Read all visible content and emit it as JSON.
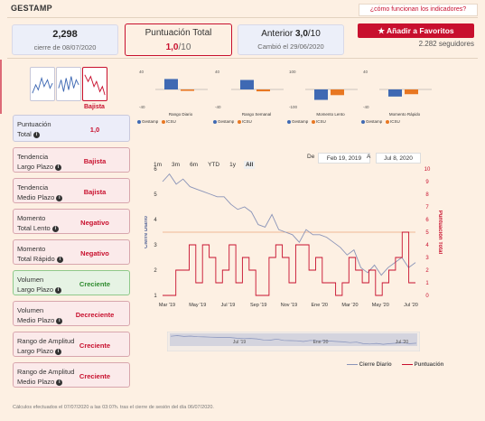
{
  "header": {
    "brand": "GESTAMP",
    "help_link": "¿cómo funcionan los indicadores?"
  },
  "summary": {
    "price": "2,298",
    "price_date": "cierre de 08/07/2020",
    "total_label": "Puntuación Total",
    "total_value": "1,0",
    "total_max": "/10",
    "prev_label": "Anterior",
    "prev_value": "3,0",
    "prev_max": "/10",
    "prev_changed": "Cambió el 29/06/2020"
  },
  "favorites": {
    "button_label": "Añadir a Favoritos",
    "followers": "2.282 seguidores"
  },
  "thumbnail_label": "Bajista",
  "mini_charts": [
    {
      "title": "Rango Diario",
      "top": "40",
      "bottom": "-40",
      "values": [
        22,
        -3
      ]
    },
    {
      "title": "Rango Semanal",
      "top": "40",
      "bottom": "-40",
      "values": [
        20,
        -4
      ]
    },
    {
      "title": "Momento Lento",
      "top": "100",
      "bottom": "-100",
      "values": [
        -55,
        -30
      ]
    },
    {
      "title": "Momento Rápido",
      "top": "40",
      "bottom": "-40",
      "values": [
        -15,
        -10
      ]
    }
  ],
  "mini_legend": {
    "a": "Gestamp",
    "b": "ICSU",
    "a_color": "#3f69b3",
    "b_color": "#e87722"
  },
  "indicators": [
    {
      "label1": "Puntuación",
      "label2": "Total",
      "value": "1,0",
      "style": "blue"
    },
    {
      "label1": "Tendencia",
      "label2": "Largo Plazo",
      "value": "Bajista",
      "style": "red"
    },
    {
      "label1": "Tendencia",
      "label2": "Medio Plazo",
      "value": "Bajista",
      "style": "red"
    },
    {
      "label1": "Momento",
      "label2": "Total Lento",
      "value": "Negativo",
      "style": "red"
    },
    {
      "label1": "Momento",
      "label2": "Total Rápido",
      "value": "Negativo",
      "style": "red"
    },
    {
      "label1": "Volumen",
      "label2": "Largo Plazo",
      "value": "Creciente",
      "style": "green"
    },
    {
      "label1": "Volumen",
      "label2": "Medio Plazo",
      "value": "Decreciente",
      "style": "red"
    },
    {
      "label1": "Rango de Amplitud",
      "label2": "Largo Plazo",
      "value": "Creciente",
      "style": "red"
    },
    {
      "label1": "Rango de Amplitud",
      "label2": "Medio Plazo",
      "value": "Creciente",
      "style": "red"
    }
  ],
  "range_buttons": [
    "1m",
    "3m",
    "6m",
    "YTD",
    "1y",
    "All"
  ],
  "date_range": {
    "from_label": "De",
    "from": "Feb 19, 2019",
    "to_label": "A",
    "to": "Jul 8, 2020"
  },
  "chart_data": {
    "type": "line",
    "x_ticks": [
      "Mar '19",
      "May '19",
      "Jul '19",
      "Sep '19",
      "Nov '19",
      "Ene '20",
      "Mar '20",
      "May '20",
      "Jul '20"
    ],
    "y_left_label": "Cierre Diario",
    "y_left_ticks": [
      "1",
      "2",
      "3",
      "4",
      "5",
      "6"
    ],
    "y_left_range": [
      1,
      6
    ],
    "y_right_label": "Puntuación Total",
    "y_right_ticks": [
      "0",
      "1",
      "2",
      "3",
      "4",
      "5",
      "6",
      "7",
      "8",
      "9",
      "10"
    ],
    "y_right_range": [
      0,
      10
    ],
    "reference_line": 5,
    "series": [
      {
        "name": "Cierre Diario",
        "color": "#8a94b8",
        "values": [
          5.5,
          5.8,
          5.4,
          5.6,
          5.3,
          5.2,
          5.1,
          5.0,
          4.9,
          4.9,
          4.6,
          4.4,
          4.5,
          4.3,
          3.8,
          3.7,
          4.2,
          3.6,
          3.5,
          3.4,
          3.1,
          3.6,
          3.4,
          3.4,
          3.3,
          3.1,
          2.9,
          2.6,
          2.8,
          2.1,
          1.9,
          2.2,
          1.8,
          2.1,
          2.3,
          2.5,
          2.1,
          2.3
        ]
      },
      {
        "name": "Puntuación",
        "color": "#c8102e",
        "values": [
          0,
          0,
          2,
          2,
          4,
          1,
          4,
          3,
          1,
          2,
          4,
          1,
          3,
          2,
          0,
          0,
          3,
          4,
          3,
          1,
          4,
          4,
          2,
          3,
          1,
          1,
          0,
          1,
          3,
          2,
          1,
          2,
          0,
          1,
          2,
          3,
          5,
          1
        ]
      }
    ]
  },
  "navigator": {
    "labels": [
      "Jul '19",
      "Ene '20",
      "Jul '20"
    ]
  },
  "chart_legend": {
    "close": "Cierre Diario",
    "score": "Puntuación"
  },
  "footnote": "Cálculos efectuados el 07/07/2020 a las 03:07h. tras el cierre de sesión del día 06/07/2020."
}
